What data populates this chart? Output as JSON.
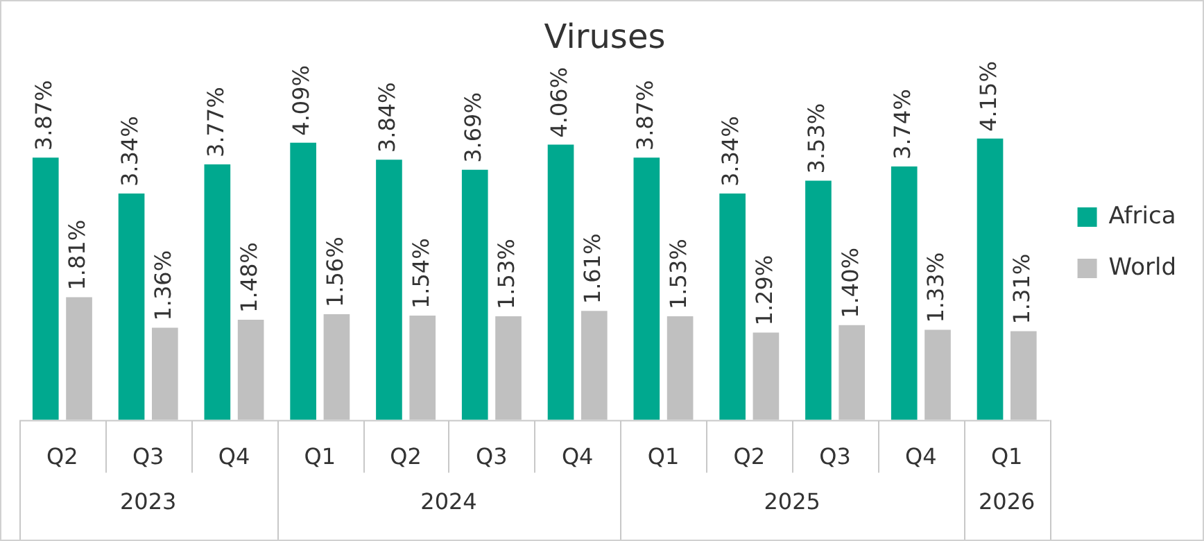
{
  "chart_data": {
    "type": "bar",
    "title": "Viruses",
    "categories": [
      "Q2",
      "Q3",
      "Q4",
      "Q1",
      "Q2",
      "Q3",
      "Q4",
      "Q1",
      "Q2",
      "Q3",
      "Q4",
      "Q1"
    ],
    "series": [
      {
        "name": "Africa",
        "color": "#00a98f",
        "values": [
          3.87,
          3.34,
          3.77,
          4.09,
          3.84,
          3.69,
          4.06,
          3.87,
          3.34,
          3.53,
          3.74,
          4.15
        ],
        "value_labels": [
          "3.87%",
          "3.34%",
          "3.77%",
          "4.09%",
          "3.84%",
          "3.69%",
          "4.06%",
          "3.87%",
          "3.34%",
          "3.53%",
          "3.74%",
          "4.15%"
        ]
      },
      {
        "name": "World",
        "color": "#c0c0c0",
        "values": [
          1.81,
          1.36,
          1.48,
          1.56,
          1.54,
          1.53,
          1.61,
          1.53,
          1.29,
          1.4,
          1.33,
          1.31
        ],
        "value_labels": [
          "1.81%",
          "1.36%",
          "1.48%",
          "1.56%",
          "1.54%",
          "1.53%",
          "1.61%",
          "1.53%",
          "1.29%",
          "1.40%",
          "1.33%",
          "1.31%"
        ]
      }
    ],
    "annotations": [
      "2023",
      "2024",
      "2025",
      "2026"
    ],
    "legend": "right"
  }
}
